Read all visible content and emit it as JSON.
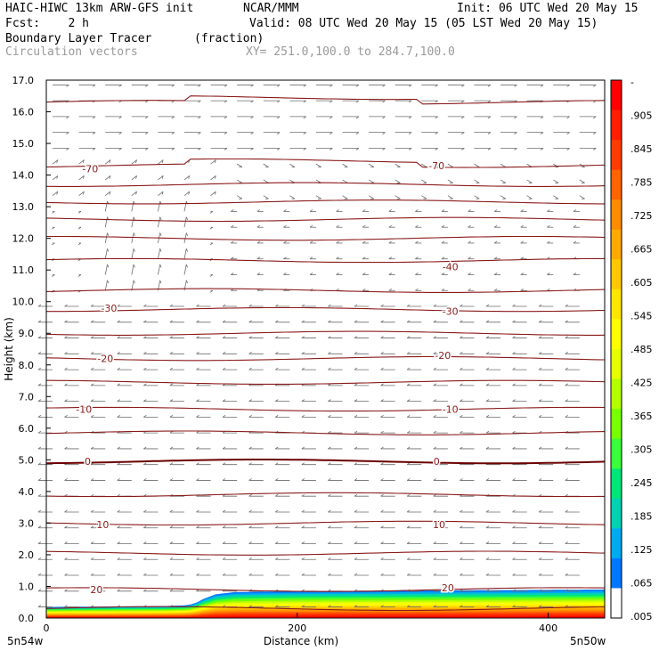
{
  "header": {
    "title_left": "HAIC-HIWC 13km ARW-GFS init",
    "title_center": "NCAR/MMM",
    "init": "Init: 06 UTC Wed 20 May 15",
    "fcst": "Fcst:    2 h",
    "valid": "Valid: 08 UTC Wed 20 May 15 (05 LST Wed 20 May 15)",
    "field1": "Boundary Layer Tracer",
    "field1_units": "(fraction)",
    "field2": "Circulation vectors",
    "xy": "XY= 251.0,100.0 to 284.7,100.0"
  },
  "chart_data": {
    "type": "heatmap",
    "xlabel": "Distance (km)",
    "ylabel": "Height (km)",
    "xlim": [
      0,
      445
    ],
    "ylim": [
      0,
      17
    ],
    "x_ticks": [
      0,
      200,
      400
    ],
    "y_ticks": [
      "0.0",
      "1.0",
      "2.0",
      "3.0",
      "4.0",
      "5.0",
      "6.0",
      "7.0",
      "8.0",
      "9.0",
      "10.0",
      "11.0",
      "12.0",
      "13.0",
      "14.0",
      "15.0",
      "16.0",
      "17.0"
    ],
    "x_end_labels": {
      "left": "5n54w",
      "right": "5n50w"
    },
    "colorbar": {
      "labels": [
        "-",
        ".905",
        ".845",
        ".785",
        ".725",
        ".665",
        ".605",
        ".545",
        ".485",
        ".425",
        ".365",
        ".305",
        ".245",
        ".185",
        ".125",
        ".065",
        ".005"
      ],
      "colors": [
        "#ff0000",
        "#ff1e00",
        "#ff3c00",
        "#ff6400",
        "#ff8c00",
        "#ffaa00",
        "#ffc800",
        "#ffe600",
        "#ffff00",
        "#e6ff00",
        "#b4ff00",
        "#78ff00",
        "#3cff3c",
        "#00e678",
        "#00d2b4",
        "#00aaf0",
        "#0078ff",
        "#ffffff"
      ]
    },
    "contour_labels": [
      {
        "value": "-70",
        "x": 35,
        "y": 14.2
      },
      {
        "value": "-70",
        "x": 311,
        "y": 14.3
      },
      {
        "value": "-40",
        "x": 322,
        "y": 11.1
      },
      {
        "value": "-30",
        "x": 50,
        "y": 9.8
      },
      {
        "value": "-30",
        "x": 322,
        "y": 9.7
      },
      {
        "value": "-20",
        "x": 47,
        "y": 8.2
      },
      {
        "value": "-20",
        "x": 316,
        "y": 8.3
      },
      {
        "value": "-10",
        "x": 30,
        "y": 6.6
      },
      {
        "value": "-10",
        "x": 322,
        "y": 6.6
      },
      {
        "value": "0",
        "x": 33,
        "y": 4.95
      },
      {
        "value": "0",
        "x": 311,
        "y": 4.95
      },
      {
        "value": "10",
        "x": 45,
        "y": 2.95
      },
      {
        "value": "10",
        "x": 313,
        "y": 2.95
      },
      {
        "value": "20",
        "x": 40,
        "y": 0.9
      },
      {
        "value": "20",
        "x": 320,
        "y": 0.95
      }
    ],
    "contour_levels_km": [
      0.3,
      0.9,
      2.05,
      3.0,
      3.9,
      4.95,
      5.85,
      6.6,
      7.45,
      8.2,
      9.0,
      9.75,
      10.35,
      11.3,
      12.0,
      12.6,
      13.15,
      13.7,
      14.3,
      16.3
    ],
    "tracer_top_km": [
      [
        0,
        0.35
      ],
      [
        60,
        0.37
      ],
      [
        95,
        0.38
      ],
      [
        110,
        0.4
      ],
      [
        118,
        0.45
      ],
      [
        125,
        0.6
      ],
      [
        135,
        0.75
      ],
      [
        150,
        0.82
      ],
      [
        200,
        0.85
      ],
      [
        300,
        0.87
      ],
      [
        445,
        0.9
      ]
    ]
  }
}
